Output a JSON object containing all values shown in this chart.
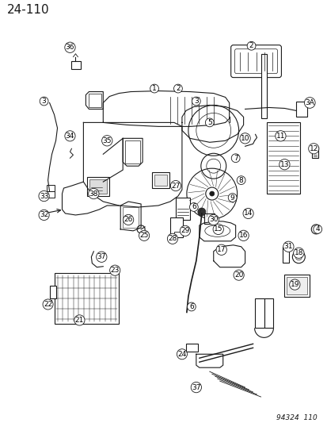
{
  "title": "24-110",
  "catalog_number": "94324  110",
  "bg_color": "#ffffff",
  "line_color": "#1a1a1a",
  "title_fontsize": 11,
  "catalog_fontsize": 6.5,
  "label_fontsize": 6.5
}
